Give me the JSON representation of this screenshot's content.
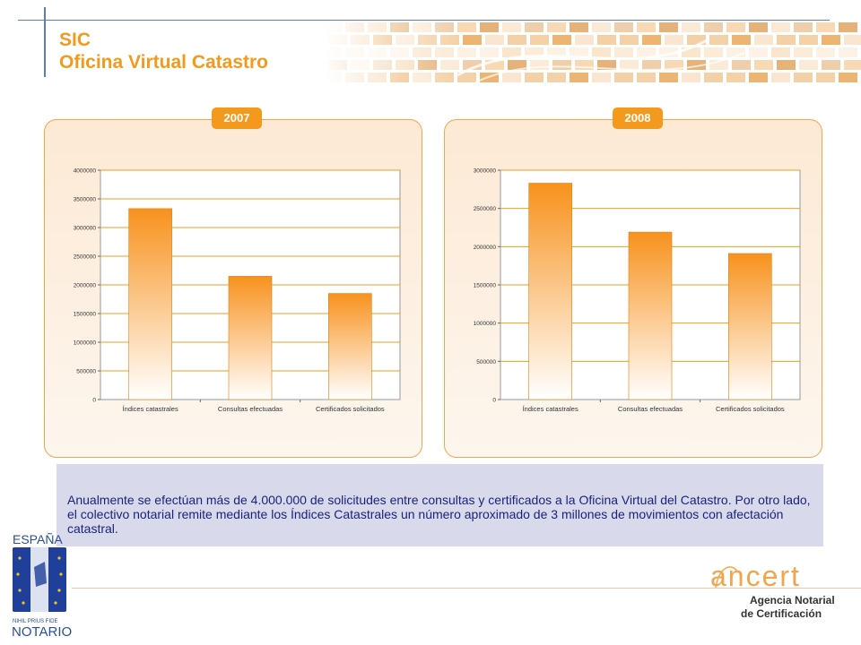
{
  "title": {
    "line1": "SIC",
    "line2": "Oficina Virtual Catastro"
  },
  "colors": {
    "accent": "#f39a1e",
    "text_dark": "#1a237e",
    "bar_top": "#f7921e",
    "bar_bottom": "#ffffff",
    "grid": "#e8a020",
    "textbox_bg": "#d8daeb"
  },
  "chart_data": [
    {
      "type": "bar",
      "title": "2007",
      "categories": [
        "Índices catastrales",
        "Consultas efectuadas",
        "Certificados solicitados"
      ],
      "values": [
        3330000,
        2150000,
        1850000
      ],
      "yticks": [
        "0",
        "500000",
        "1000000",
        "1500000",
        "2000000",
        "2500000",
        "3000000",
        "3500000",
        "4000000"
      ],
      "ylim": [
        0,
        4000000
      ],
      "grid": true,
      "xlabel": "",
      "ylabel": ""
    },
    {
      "type": "bar",
      "title": "2008",
      "categories": [
        "Índices catastrales",
        "Consultas efectuadas",
        "Certificados solicitados"
      ],
      "values": [
        2830000,
        2190000,
        1910000
      ],
      "yticks": [
        "0",
        "500000",
        "1000000",
        "1500000",
        "2000000",
        "2500000",
        "3000000"
      ],
      "ylim": [
        0,
        3000000
      ],
      "grid": true,
      "xlabel": "",
      "ylabel": ""
    }
  ],
  "description": "Anualmente se efectúan más de 4.000.000 de solicitudes entre consultas y certificados a la Oficina Virtual del Catastro.   Por otro lado,  el colectivo notarial remite mediante los Índices Catastrales un número aproximado de 3 millones de movimientos con afectación catastral.",
  "logo_left": {
    "country": "ESPAÑA",
    "motto": "NIHIL PRIUS FIDE",
    "name": "NOTARIO"
  },
  "logo_right": {
    "brand": "ancert",
    "line1": "Agencia Notarial",
    "line2": "de Certificación"
  }
}
